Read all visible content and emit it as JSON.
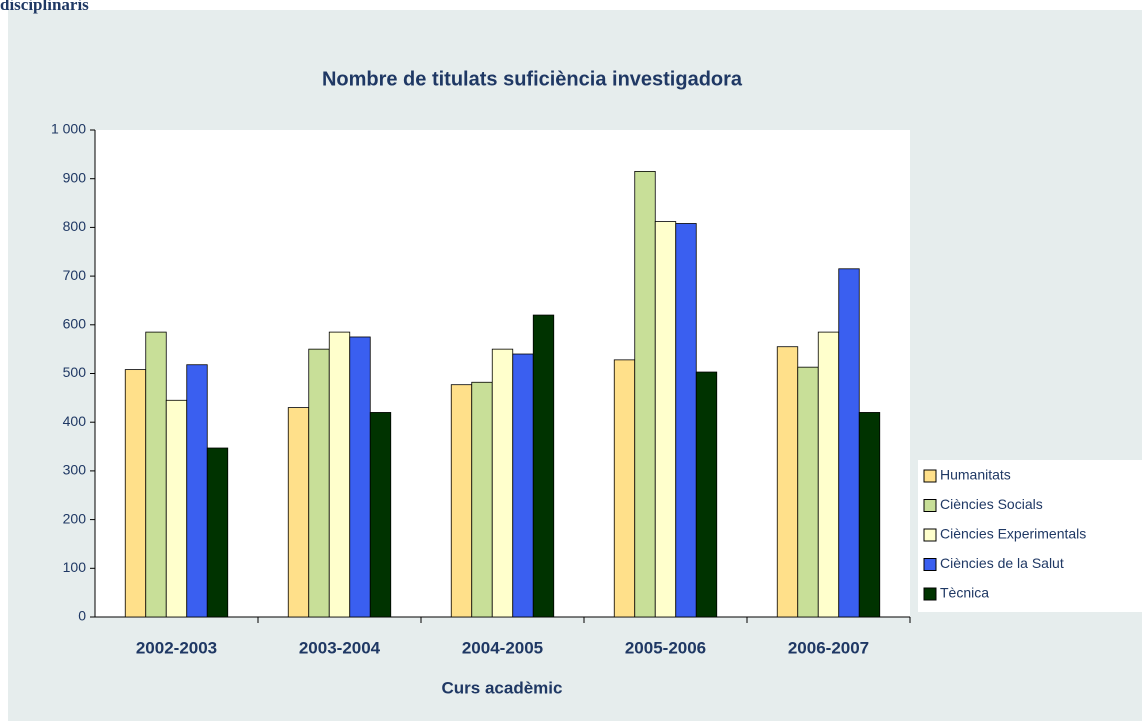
{
  "heading": "disciplinaris",
  "chart_data": {
    "type": "bar",
    "title": "Nombre de titulats suficiència investigadora",
    "xlabel": "Curs acadèmic",
    "categories": [
      "2002-2003",
      "2003-2004",
      "2004-2005",
      "2005-2006",
      "2006-2007"
    ],
    "series": [
      {
        "name": "Humanitats",
        "color": "#ffe08a",
        "values": [
          508,
          430,
          477,
          528,
          555
        ]
      },
      {
        "name": "Ciències Socials",
        "color": "#c8df98",
        "values": [
          585,
          550,
          482,
          915,
          513
        ]
      },
      {
        "name": "Ciències Experimentals",
        "color": "#ffffcc",
        "values": [
          445,
          585,
          550,
          812,
          585
        ]
      },
      {
        "name": "Ciències de la Salut",
        "color": "#3a5ff0",
        "values": [
          518,
          575,
          540,
          808,
          715
        ]
      },
      {
        "name": "Tècnica",
        "color": "#003300",
        "values": [
          347,
          420,
          620,
          503,
          420
        ]
      }
    ],
    "ylim": [
      0,
      1000
    ],
    "yticks": [
      0,
      100,
      200,
      300,
      400,
      500,
      600,
      700,
      800,
      900,
      {
        "value": 1000,
        "label": "1 000"
      }
    ],
    "grid": false,
    "legend": "right"
  }
}
